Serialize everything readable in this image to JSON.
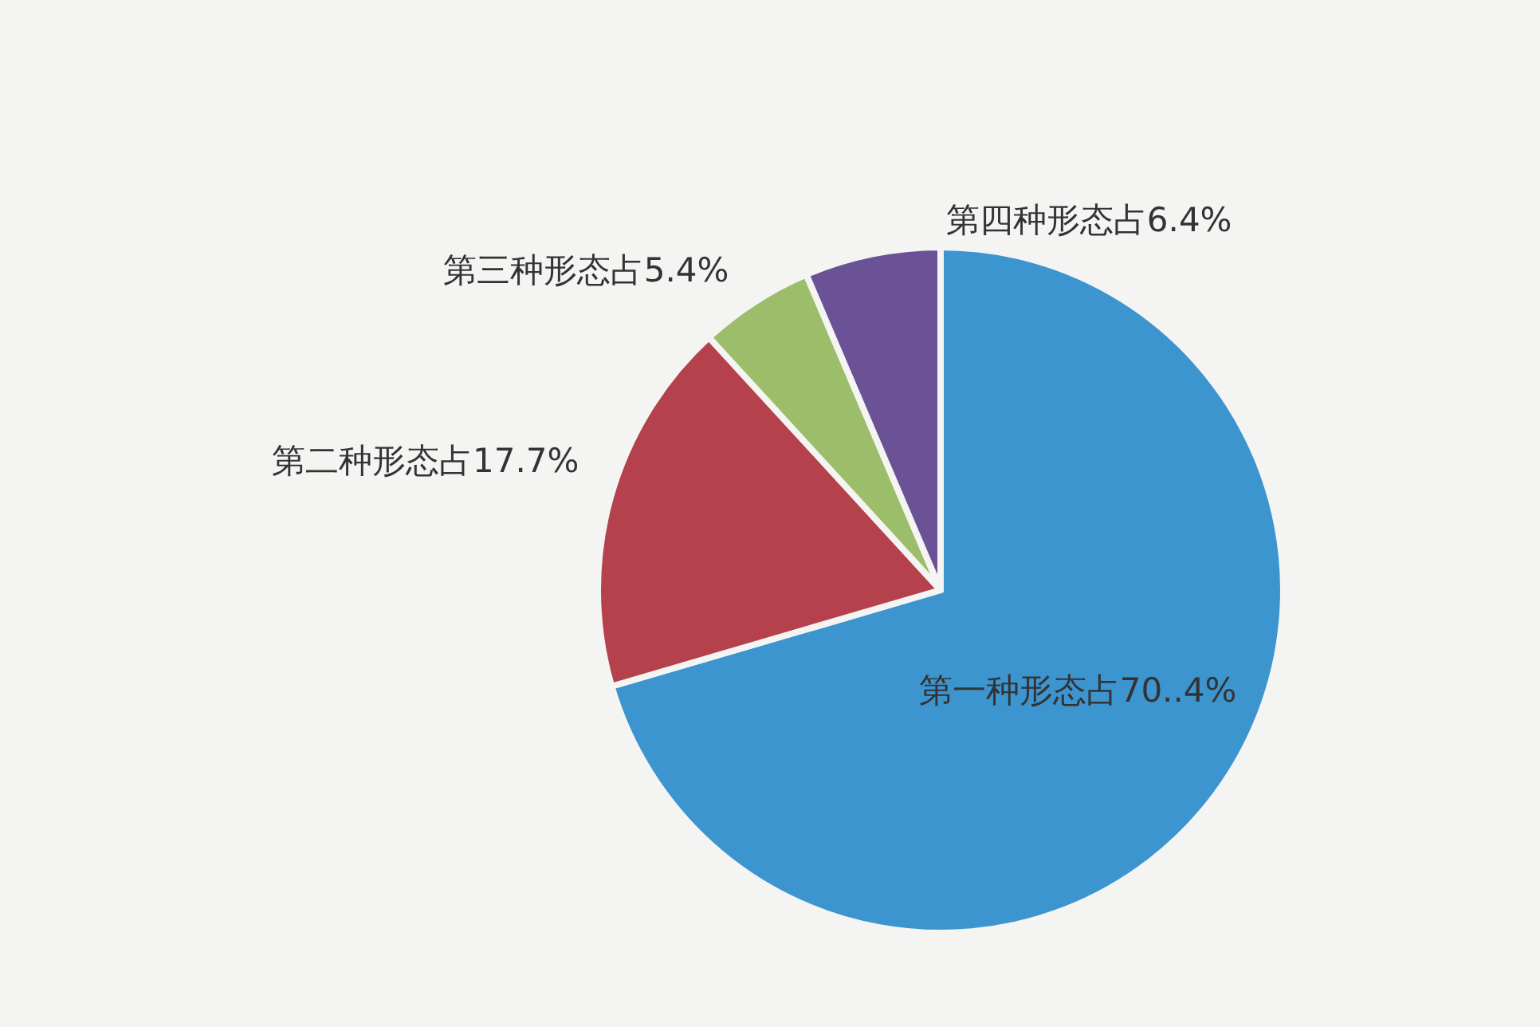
{
  "chart_data": {
    "type": "pie",
    "categories": [
      "第一种形态占70..4%",
      "第二种形态占17.7%",
      "第三种形态占5.4%",
      "第四种形态占6.4%"
    ],
    "values": [
      70.4,
      17.7,
      5.4,
      6.4
    ],
    "colors": [
      "#3d95cf",
      "#b5414c",
      "#9cbd6a",
      "#6b5296"
    ]
  }
}
